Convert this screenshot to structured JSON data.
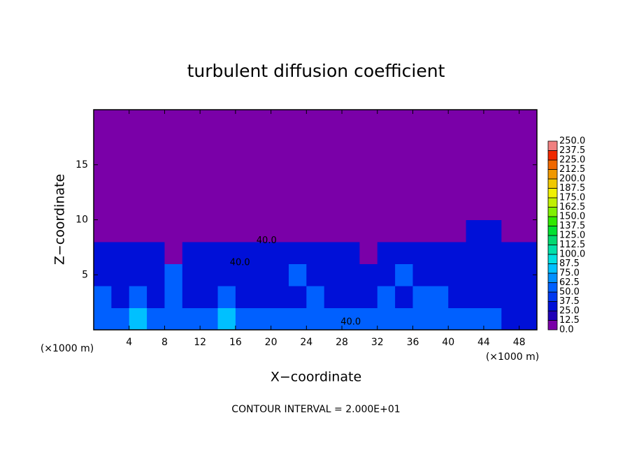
{
  "chart_data": {
    "type": "contour",
    "title": "turbulent diffusion coefficient",
    "xlabel": "X−coordinate",
    "ylabel": "Z−coordinate",
    "x_unit": "(×1000 m)",
    "x_unit_right": "(×1000 m)",
    "footer": "CONTOUR INTERVAL = 2.000E+01",
    "xlim": [
      0,
      50
    ],
    "ylim": [
      0,
      20
    ],
    "xticks": [
      4,
      8,
      12,
      16,
      20,
      24,
      28,
      32,
      36,
      40,
      44,
      48
    ],
    "yticks": [
      5,
      10,
      15
    ],
    "contour_labels": [
      {
        "text": "40.0",
        "x": 19.5,
        "y": 8.1
      },
      {
        "text": "40.0",
        "x": 16.5,
        "y": 6.1
      },
      {
        "text": "40.0",
        "x": 29,
        "y": 0.7
      }
    ],
    "z": [
      [
        62,
        50,
        75,
        50,
        62,
        50,
        62,
        75,
        62,
        50,
        50,
        62,
        50,
        62,
        50,
        62,
        62,
        50,
        62,
        50,
        50,
        62,
        50,
        37,
        37
      ],
      [
        50,
        37,
        50,
        37,
        50,
        25,
        37,
        50,
        37,
        37,
        25,
        37,
        50,
        37,
        25,
        37,
        50,
        37,
        62,
        50,
        37,
        25,
        37,
        25,
        37
      ],
      [
        37,
        25,
        37,
        25,
        50,
        37,
        25,
        37,
        25,
        25,
        37,
        50,
        37,
        25,
        25,
        37,
        37,
        50,
        37,
        37,
        25,
        37,
        25,
        25,
        25
      ],
      [
        25,
        25,
        25,
        25,
        0,
        25,
        25,
        37,
        25,
        25,
        25,
        37,
        25,
        25,
        25,
        0,
        25,
        25,
        37,
        25,
        25,
        25,
        25,
        25,
        25
      ],
      [
        0,
        0,
        0,
        0,
        0,
        0,
        0,
        0,
        0,
        0,
        0,
        0,
        0,
        0,
        0,
        0,
        0,
        0,
        0,
        0,
        0,
        25,
        25,
        0,
        0
      ],
      [
        0,
        0,
        0,
        0,
        0,
        0,
        0,
        0,
        0,
        0,
        0,
        0,
        0,
        0,
        0,
        0,
        0,
        0,
        0,
        0,
        0,
        0,
        0,
        0,
        0
      ],
      [
        0,
        0,
        0,
        0,
        0,
        0,
        0,
        0,
        0,
        0,
        0,
        0,
        0,
        0,
        0,
        0,
        0,
        0,
        0,
        0,
        0,
        0,
        0,
        0,
        0
      ],
      [
        0,
        0,
        0,
        0,
        0,
        0,
        0,
        0,
        0,
        0,
        0,
        0,
        0,
        0,
        0,
        0,
        0,
        0,
        0,
        0,
        0,
        0,
        0,
        0,
        0
      ],
      [
        0,
        0,
        0,
        0,
        0,
        0,
        0,
        0,
        0,
        0,
        0,
        0,
        0,
        0,
        0,
        0,
        0,
        0,
        0,
        0,
        0,
        0,
        0,
        0,
        0
      ],
      [
        0,
        0,
        0,
        0,
        0,
        0,
        0,
        0,
        0,
        0,
        0,
        0,
        0,
        0,
        0,
        0,
        0,
        0,
        0,
        0,
        0,
        0,
        0,
        0,
        0
      ]
    ],
    "colorbar": {
      "ticks": [
        {
          "value": 0,
          "label": "0.0"
        },
        12.5,
        {
          "value": 25,
          "label": "25.0"
        },
        37.5,
        {
          "value": 50,
          "label": "50.0"
        },
        62.5,
        {
          "value": 75,
          "label": "75.0"
        },
        87.5,
        {
          "value": 100,
          "label": "100.0"
        },
        112.5,
        {
          "value": 125,
          "label": "125.0"
        },
        137.5,
        {
          "value": 150,
          "label": "150.0"
        },
        162.5,
        {
          "value": 175,
          "label": "175.0"
        },
        187.5,
        {
          "value": 200,
          "label": "200.0"
        },
        212.5,
        {
          "value": 225,
          "label": "225.0"
        },
        237.5,
        {
          "value": 250,
          "label": "250.0"
        }
      ],
      "colors": [
        "#7a00a8",
        "#2000b8",
        "#0010d8",
        "#0038f0",
        "#0060ff",
        "#0090ff",
        "#00c0ff",
        "#00e0e0",
        "#00e0a8",
        "#00d870",
        "#00e030",
        "#30e800",
        "#80f000",
        "#c0f000",
        "#f0f000",
        "#f0c800",
        "#f09800",
        "#f06800",
        "#f02800",
        "#f08080"
      ]
    }
  }
}
